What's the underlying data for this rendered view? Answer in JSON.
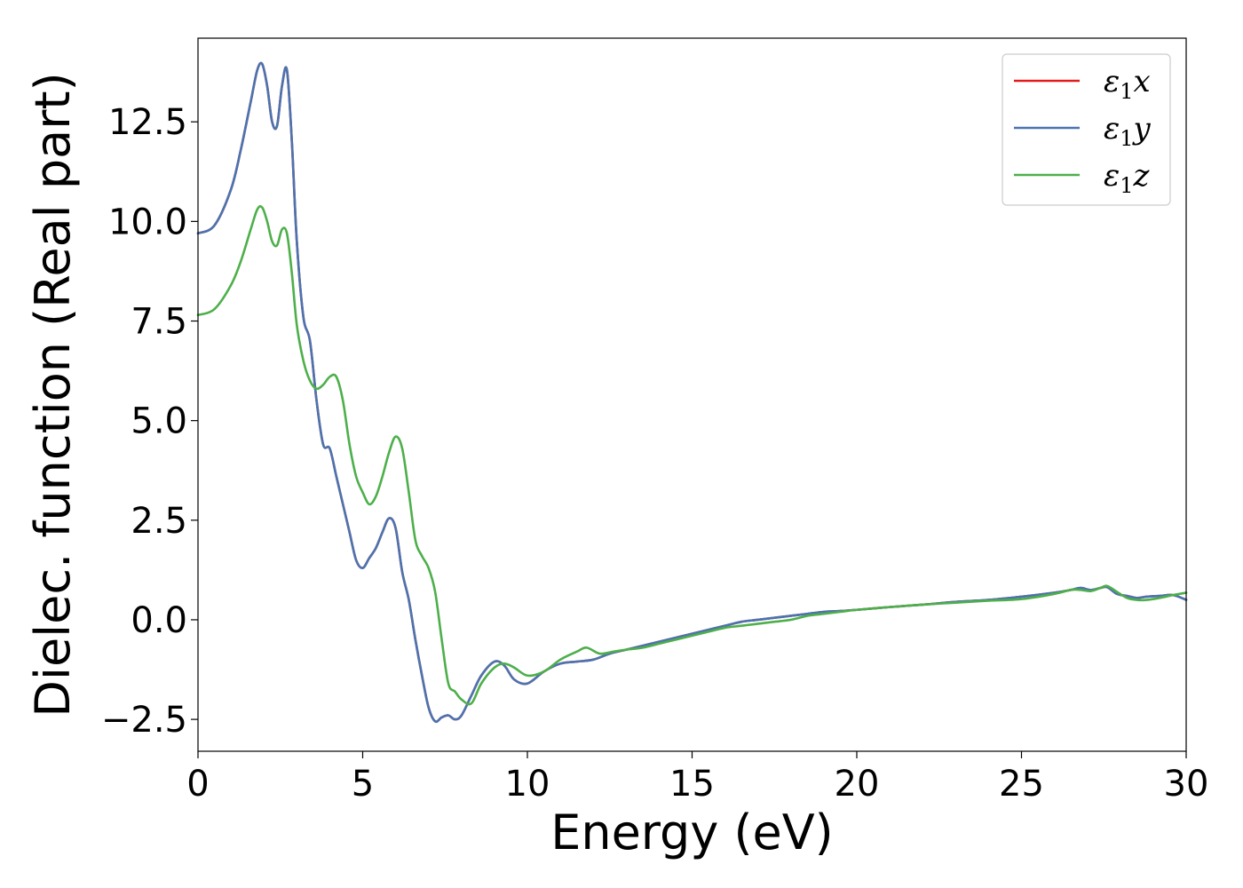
{
  "chart_data": {
    "type": "line",
    "xlabel": "Energy (eV)",
    "ylabel": "Dielec. function (Real part)",
    "xlim": [
      0,
      30
    ],
    "ylim": [
      -3.3,
      14.6
    ],
    "xticks": [
      "0",
      "5",
      "10",
      "15",
      "20",
      "25",
      "30"
    ],
    "xtick_values": [
      0,
      5,
      10,
      15,
      20,
      25,
      30
    ],
    "yticks": [
      "−2.5",
      "0.0",
      "2.5",
      "5.0",
      "7.5",
      "10.0",
      "12.5"
    ],
    "ytick_values": [
      -2.5,
      0,
      2.5,
      5,
      7.5,
      10,
      12.5
    ],
    "grid": false,
    "legend_position": "top-right",
    "series": [
      {
        "name": "ε₁x",
        "legend_base": "ε",
        "legend_sub": "1",
        "legend_var": "x",
        "color": "#e41a1c",
        "x": [
          0,
          0.5,
          1.0,
          1.3,
          1.6,
          1.8,
          1.95,
          2.1,
          2.25,
          2.4,
          2.55,
          2.7,
          2.85,
          3.0,
          3.2,
          3.4,
          3.6,
          3.8,
          4.0,
          4.2,
          4.4,
          4.6,
          4.8,
          5.0,
          5.2,
          5.4,
          5.6,
          5.8,
          6.0,
          6.2,
          6.4,
          6.6,
          6.8,
          7.0,
          7.2,
          7.4,
          7.6,
          7.8,
          8.0,
          8.3,
          8.6,
          9.0,
          9.3,
          9.6,
          10.0,
          10.5,
          11.0,
          11.5,
          12.0,
          12.5,
          13.0,
          13.5,
          14.0,
          14.5,
          15.0,
          15.5,
          16.0,
          16.5,
          17.0,
          17.5,
          18.0,
          18.5,
          19.0,
          19.5,
          20.0,
          21.0,
          22.0,
          23.0,
          24.0,
          25.0,
          26.0,
          26.5,
          26.8,
          27.1,
          27.4,
          27.6,
          27.9,
          28.2,
          28.5,
          28.8,
          29.2,
          29.6,
          30.0
        ],
        "values": [
          9.7,
          9.9,
          10.8,
          11.8,
          13.0,
          13.8,
          13.95,
          13.4,
          12.5,
          12.4,
          13.4,
          13.8,
          12.0,
          9.5,
          7.6,
          7.0,
          5.5,
          4.4,
          4.3,
          3.6,
          2.9,
          2.2,
          1.5,
          1.3,
          1.55,
          1.8,
          2.2,
          2.55,
          2.3,
          1.2,
          0.5,
          -0.5,
          -1.4,
          -2.2,
          -2.55,
          -2.45,
          -2.4,
          -2.5,
          -2.4,
          -1.9,
          -1.4,
          -1.05,
          -1.15,
          -1.5,
          -1.6,
          -1.3,
          -1.1,
          -1.05,
          -1.0,
          -0.85,
          -0.75,
          -0.65,
          -0.55,
          -0.45,
          -0.35,
          -0.25,
          -0.15,
          -0.05,
          0.0,
          0.05,
          0.1,
          0.15,
          0.2,
          0.22,
          0.25,
          0.32,
          0.38,
          0.45,
          0.5,
          0.58,
          0.68,
          0.75,
          0.8,
          0.75,
          0.8,
          0.82,
          0.65,
          0.6,
          0.55,
          0.58,
          0.6,
          0.62,
          0.5
        ]
      },
      {
        "name": "ε₁y",
        "legend_base": "ε",
        "legend_sub": "1",
        "legend_var": "y",
        "color": "#4a74b0",
        "x": [
          0,
          0.5,
          1.0,
          1.3,
          1.6,
          1.8,
          1.95,
          2.1,
          2.25,
          2.4,
          2.55,
          2.7,
          2.85,
          3.0,
          3.2,
          3.4,
          3.6,
          3.8,
          4.0,
          4.2,
          4.4,
          4.6,
          4.8,
          5.0,
          5.2,
          5.4,
          5.6,
          5.8,
          6.0,
          6.2,
          6.4,
          6.6,
          6.8,
          7.0,
          7.2,
          7.4,
          7.6,
          7.8,
          8.0,
          8.3,
          8.6,
          9.0,
          9.3,
          9.6,
          10.0,
          10.5,
          11.0,
          11.5,
          12.0,
          12.5,
          13.0,
          13.5,
          14.0,
          14.5,
          15.0,
          15.5,
          16.0,
          16.5,
          17.0,
          17.5,
          18.0,
          18.5,
          19.0,
          19.5,
          20.0,
          21.0,
          22.0,
          23.0,
          24.0,
          25.0,
          26.0,
          26.5,
          26.8,
          27.1,
          27.4,
          27.6,
          27.9,
          28.2,
          28.5,
          28.8,
          29.2,
          29.6,
          30.0
        ],
        "values": [
          9.7,
          9.9,
          10.8,
          11.8,
          13.0,
          13.8,
          13.95,
          13.4,
          12.5,
          12.4,
          13.4,
          13.8,
          12.0,
          9.5,
          7.6,
          7.0,
          5.5,
          4.4,
          4.3,
          3.6,
          2.9,
          2.2,
          1.5,
          1.3,
          1.55,
          1.8,
          2.2,
          2.55,
          2.3,
          1.2,
          0.5,
          -0.5,
          -1.4,
          -2.2,
          -2.55,
          -2.45,
          -2.4,
          -2.5,
          -2.4,
          -1.9,
          -1.4,
          -1.05,
          -1.15,
          -1.5,
          -1.6,
          -1.3,
          -1.1,
          -1.05,
          -1.0,
          -0.85,
          -0.75,
          -0.65,
          -0.55,
          -0.45,
          -0.35,
          -0.25,
          -0.15,
          -0.05,
          0.0,
          0.05,
          0.1,
          0.15,
          0.2,
          0.22,
          0.25,
          0.32,
          0.38,
          0.45,
          0.5,
          0.58,
          0.68,
          0.75,
          0.8,
          0.75,
          0.8,
          0.82,
          0.65,
          0.6,
          0.55,
          0.58,
          0.6,
          0.62,
          0.5
        ]
      },
      {
        "name": "ε₁z",
        "legend_base": "ε",
        "legend_sub": "1",
        "legend_var": "z",
        "color": "#4daf4a",
        "x": [
          0,
          0.5,
          1.0,
          1.3,
          1.6,
          1.8,
          1.95,
          2.1,
          2.25,
          2.4,
          2.55,
          2.7,
          2.85,
          3.0,
          3.2,
          3.4,
          3.6,
          3.8,
          4.0,
          4.2,
          4.4,
          4.6,
          4.8,
          5.0,
          5.2,
          5.4,
          5.6,
          5.8,
          6.0,
          6.2,
          6.4,
          6.6,
          6.8,
          7.0,
          7.2,
          7.4,
          7.6,
          7.8,
          8.0,
          8.3,
          8.6,
          9.0,
          9.3,
          9.6,
          10.0,
          10.5,
          11.0,
          11.5,
          11.8,
          12.2,
          12.6,
          13.0,
          13.5,
          14.0,
          14.5,
          15.0,
          15.5,
          16.0,
          16.5,
          17.0,
          17.5,
          18.0,
          18.5,
          19.0,
          19.5,
          20.0,
          21.0,
          22.0,
          23.0,
          24.0,
          25.0,
          26.0,
          26.5,
          26.8,
          27.1,
          27.4,
          27.6,
          27.9,
          28.2,
          28.5,
          28.8,
          29.2,
          29.6,
          30.0
        ],
        "values": [
          7.65,
          7.8,
          8.4,
          9.0,
          9.8,
          10.3,
          10.35,
          10.0,
          9.5,
          9.4,
          9.8,
          9.7,
          8.7,
          7.4,
          6.5,
          6.0,
          5.8,
          5.9,
          6.1,
          6.1,
          5.5,
          4.4,
          3.6,
          3.2,
          2.9,
          3.1,
          3.6,
          4.2,
          4.6,
          4.3,
          3.2,
          2.0,
          1.6,
          1.3,
          0.7,
          -0.5,
          -1.6,
          -1.8,
          -2.0,
          -2.1,
          -1.6,
          -1.2,
          -1.1,
          -1.2,
          -1.4,
          -1.3,
          -1.0,
          -0.8,
          -0.7,
          -0.85,
          -0.8,
          -0.75,
          -0.7,
          -0.6,
          -0.5,
          -0.4,
          -0.3,
          -0.2,
          -0.15,
          -0.1,
          -0.05,
          0.0,
          0.1,
          0.15,
          0.2,
          0.25,
          0.32,
          0.38,
          0.43,
          0.48,
          0.52,
          0.65,
          0.75,
          0.75,
          0.72,
          0.8,
          0.85,
          0.7,
          0.55,
          0.5,
          0.5,
          0.55,
          0.62,
          0.68
        ]
      }
    ]
  }
}
